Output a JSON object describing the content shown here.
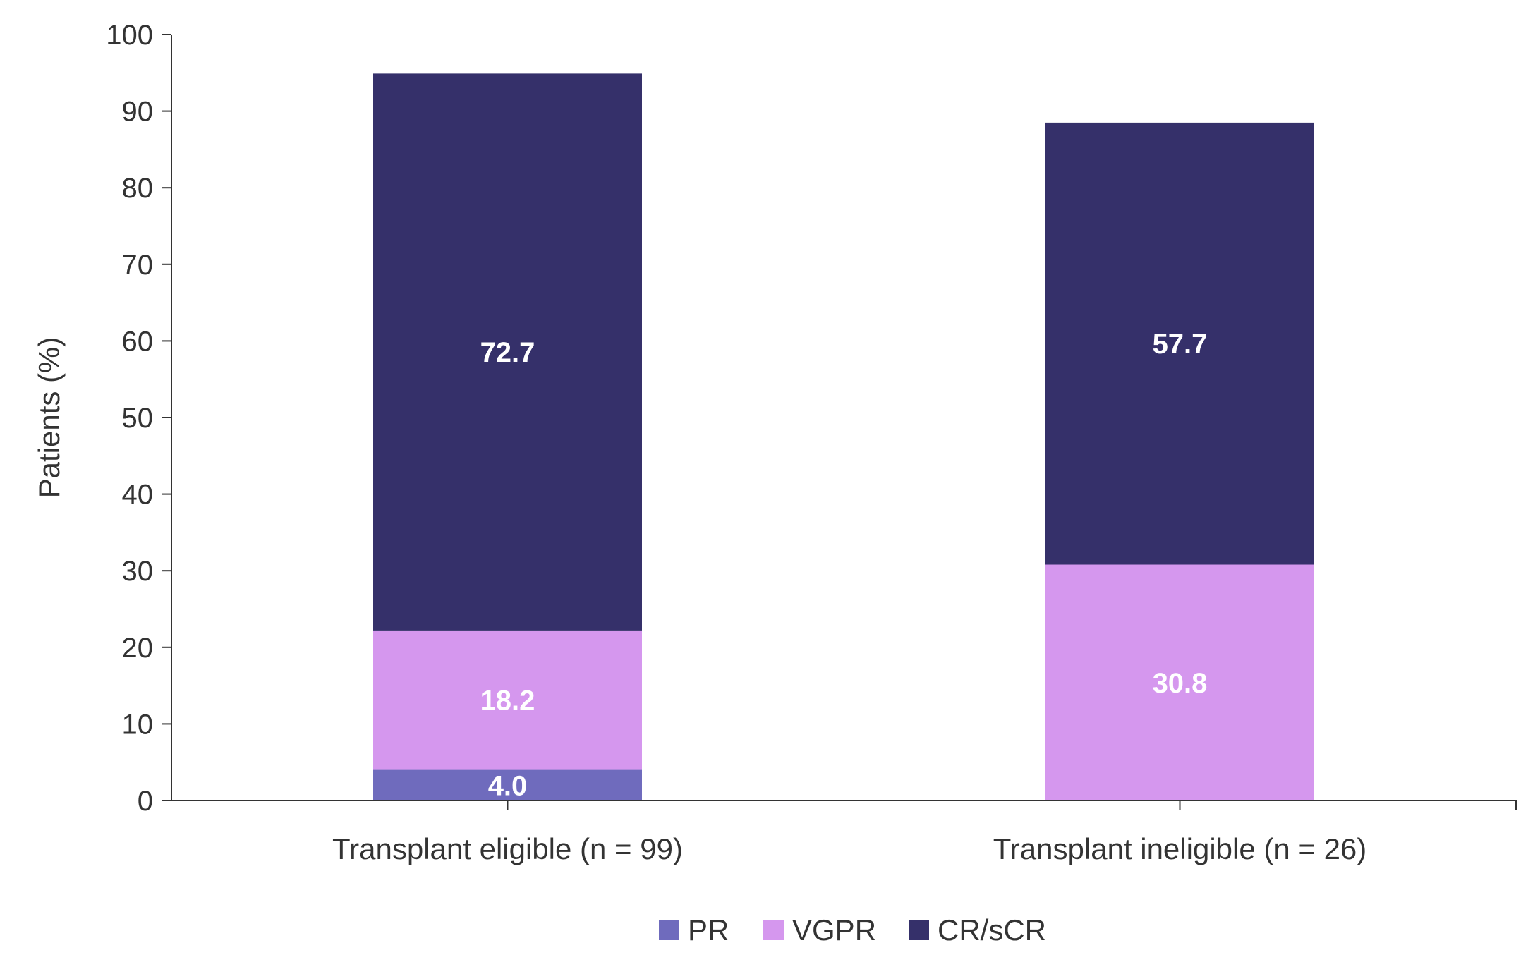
{
  "chart_data": {
    "type": "bar",
    "stacked": true,
    "title": "",
    "xlabel": "",
    "ylabel": "Patients (%)",
    "ylim": [
      0,
      100
    ],
    "yticks": [
      0,
      10,
      20,
      30,
      40,
      50,
      60,
      70,
      80,
      90,
      100
    ],
    "grid": false,
    "legend_position": "bottom",
    "categories": [
      "Transplant eligible (n = 99)",
      "Transplant ineligible (n = 26)"
    ],
    "series": [
      {
        "name": "PR",
        "color": "#6f6bbd",
        "values": [
          4.0,
          0
        ],
        "labels": [
          "4.0",
          ""
        ]
      },
      {
        "name": "VGPR",
        "color": "#d597ee",
        "values": [
          18.2,
          30.8
        ],
        "labels": [
          "18.2",
          "30.8"
        ]
      },
      {
        "name": "CR/sCR",
        "color": "#35306a",
        "values": [
          72.7,
          57.7
        ],
        "labels": [
          "72.7",
          "57.7"
        ]
      }
    ]
  }
}
